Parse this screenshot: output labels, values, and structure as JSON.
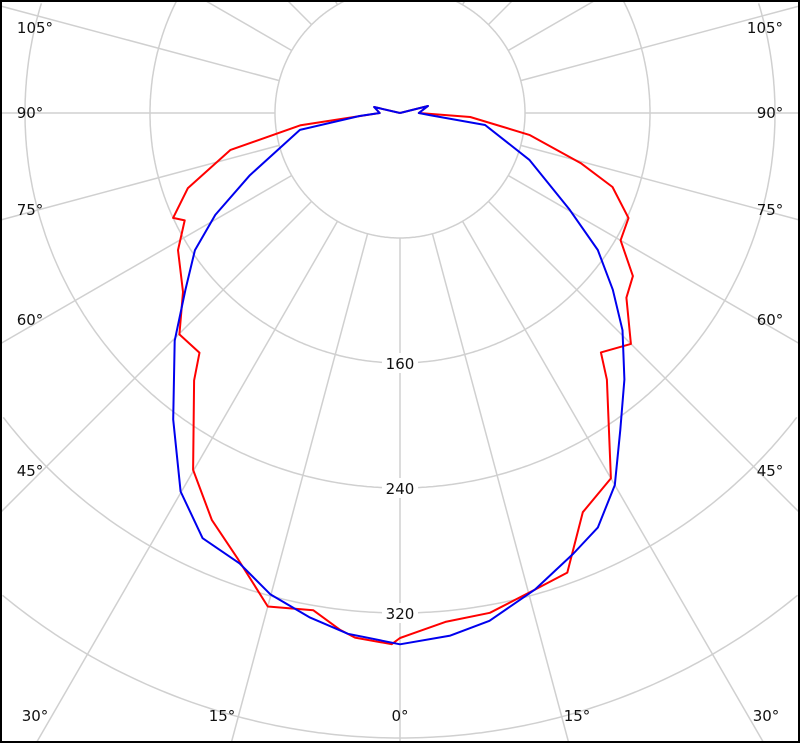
{
  "chart_data": {
    "type": "polar-line",
    "title": "",
    "radial_ticks": [
      80,
      160,
      240,
      320,
      400
    ],
    "radial_tick_labels": [
      "160",
      "240",
      "320"
    ],
    "angle_step_deg": 15,
    "angle_labels": {
      "left": [
        "105°",
        "90°",
        "75°",
        "60°",
        "45°",
        "30°",
        "15°"
      ],
      "bottom": [
        "0°"
      ],
      "right": [
        "15°",
        "30°",
        "45°",
        "60°",
        "75°",
        "90°",
        "105°"
      ]
    },
    "series": [
      {
        "name": "red",
        "color": "#ff0000",
        "right": [
          [
            0,
            336
          ],
          [
            5.1,
            327
          ],
          [
            10.2,
            325
          ],
          [
            15.8,
            317
          ],
          [
            20,
            313
          ],
          [
            24.6,
            281
          ],
          [
            30,
            270
          ],
          [
            37.8,
            216
          ],
          [
            40,
            200
          ],
          [
            45,
            209
          ],
          [
            50.8,
            187
          ],
          [
            55,
            182
          ],
          [
            60,
            163
          ],
          [
            65.3,
            161
          ],
          [
            70.8,
            144
          ],
          [
            74.5,
            120
          ],
          [
            80.4,
            84
          ],
          [
            86.7,
            45
          ],
          [
            90,
            12
          ],
          [
            104,
            18.5
          ],
          [
            180,
            0
          ]
        ],
        "left": [
          [
            0.9,
            340
          ],
          [
            4.9,
            337
          ],
          [
            6.6,
            333
          ],
          [
            9.9,
            323
          ],
          [
            15,
            327
          ],
          [
            19.9,
            304
          ],
          [
            24.8,
            287
          ],
          [
            30.1,
            264
          ],
          [
            37.6,
            216
          ],
          [
            39.9,
            200
          ],
          [
            44.9,
            200
          ],
          [
            50.5,
            180
          ],
          [
            58.3,
            167
          ],
          [
            63.5,
            154
          ],
          [
            65.2,
            160
          ],
          [
            70.5,
            144
          ],
          [
            77.7,
            111
          ],
          [
            83,
            64
          ],
          [
            90,
            13
          ],
          [
            103,
            17
          ],
          [
            180,
            0
          ]
        ]
      },
      {
        "name": "blue",
        "color": "#0000ee",
        "right": [
          [
            0,
            340
          ],
          [
            5.5,
            336
          ],
          [
            10,
            330
          ],
          [
            15.8,
            317
          ],
          [
            21.5,
            303
          ],
          [
            25.5,
            294
          ],
          [
            30,
            275
          ],
          [
            34.8,
            247
          ],
          [
            40.1,
            223
          ],
          [
            45.7,
            199
          ],
          [
            50.3,
            177
          ],
          [
            55.3,
            154
          ],
          [
            60.3,
            125
          ],
          [
            70.1,
            88
          ],
          [
            82,
            55
          ],
          [
            86,
            19
          ],
          [
            90,
            12
          ],
          [
            104,
            18.5
          ],
          [
            180,
            0
          ]
        ],
        "left": [
          [
            0,
            340
          ],
          [
            5.7,
            335
          ],
          [
            10.1,
            328
          ],
          [
            15.1,
            319
          ],
          [
            19.6,
            306
          ],
          [
            24.9,
            300
          ],
          [
            30.1,
            280
          ],
          [
            36.5,
            244
          ],
          [
            44.7,
            205
          ],
          [
            50.5,
            178
          ],
          [
            56.2,
            158
          ],
          [
            61.1,
            135
          ],
          [
            67.5,
            104
          ],
          [
            80.4,
            65
          ],
          [
            85.7,
            26
          ],
          [
            90,
            13
          ],
          [
            103,
            17
          ],
          [
            180,
            0
          ]
        ]
      }
    ],
    "grid": true
  }
}
